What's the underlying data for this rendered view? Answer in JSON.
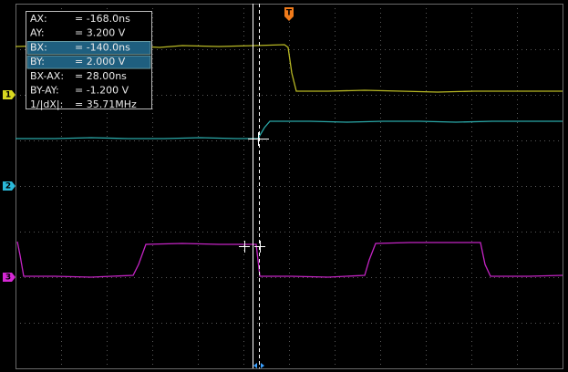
{
  "cursor_readout": {
    "rows": [
      {
        "label": "AX:",
        "value": "= -168.0ns"
      },
      {
        "label": "AY:",
        "value": "= 3.200 V"
      },
      {
        "label": "BX:",
        "value": "= -140.0ns"
      },
      {
        "label": "BY:",
        "value": "= 2.000 V"
      },
      {
        "label": "BX-AX:",
        "value": "= 28.00ns"
      },
      {
        "label": "BY-AY:",
        "value": "= -1.200 V"
      },
      {
        "label": "1/|dX|:",
        "value": "= 35.71MHz"
      }
    ]
  },
  "channel_markers": [
    "1",
    "2",
    "3"
  ],
  "trigger_marker": "T"
}
